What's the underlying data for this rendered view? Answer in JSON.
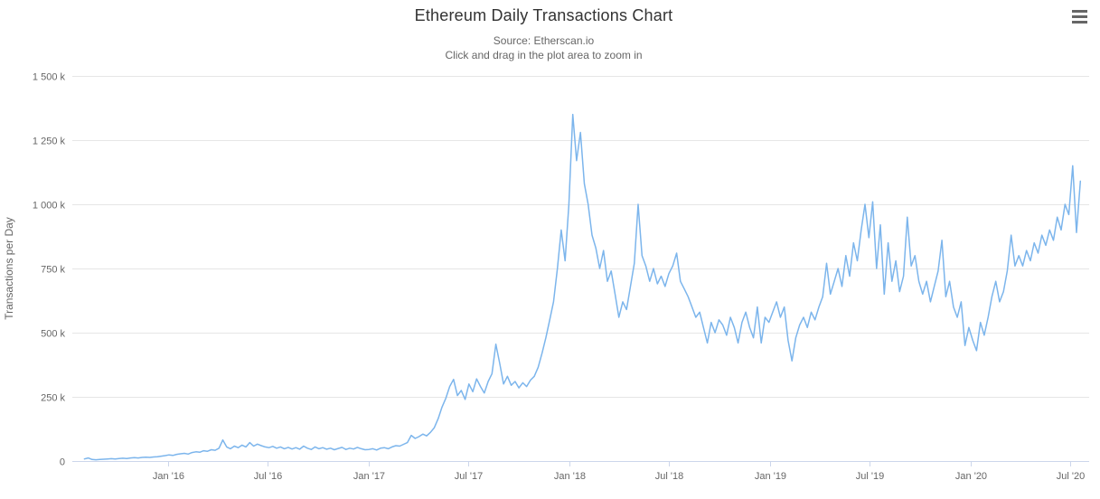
{
  "header": {
    "title": "Ethereum Daily Transactions Chart",
    "subtitle_source": "Source: Etherscan.io",
    "subtitle_hint": "Click and drag in the plot area to zoom in"
  },
  "menu": {
    "icon": "hamburger-icon"
  },
  "chart_data": {
    "type": "line",
    "title": "Ethereum Daily Transactions Chart",
    "subtitle": [
      "Source: Etherscan.io",
      "Click and drag in the plot area to zoom in"
    ],
    "xlabel": "",
    "ylabel": "Transactions per Day",
    "legend": "none",
    "grid": "horizontal",
    "ylim_k": [
      0,
      1500
    ],
    "x_domain": [
      "2015-07-11",
      "2020-08-04"
    ],
    "line_color": "#7cb5ec",
    "colors": {
      "grid": "#e6e6e6",
      "axis": "#ccd6eb",
      "label": "#666666",
      "title": "#333333"
    },
    "y_ticks": [
      {
        "label": "0",
        "value_k": 0
      },
      {
        "label": "250 k",
        "value_k": 250
      },
      {
        "label": "500 k",
        "value_k": 500
      },
      {
        "label": "750 k",
        "value_k": 750
      },
      {
        "label": "1 000 k",
        "value_k": 1000
      },
      {
        "label": "1 250 k",
        "value_k": 1250
      },
      {
        "label": "1 500 k",
        "value_k": 1500
      }
    ],
    "x_ticks": [
      {
        "label": "Jan '16",
        "date": "2016-01-01"
      },
      {
        "label": "Jul '16",
        "date": "2016-07-01"
      },
      {
        "label": "Jan '17",
        "date": "2017-01-01"
      },
      {
        "label": "Jul '17",
        "date": "2017-07-01"
      },
      {
        "label": "Jan '18",
        "date": "2018-01-01"
      },
      {
        "label": "Jul '18",
        "date": "2018-07-01"
      },
      {
        "label": "Jan '19",
        "date": "2019-01-01"
      },
      {
        "label": "Jul '19",
        "date": "2019-07-01"
      },
      {
        "label": "Jan '20",
        "date": "2020-01-01"
      },
      {
        "label": "Jul '20",
        "date": "2020-07-01"
      }
    ],
    "series": [
      {
        "name": "Transactions per Day",
        "start_date": "2015-08-02",
        "interval_days": 7,
        "units": "thousand transactions per day (values estimated weekly from plot)",
        "values_k": [
          8,
          12,
          6,
          5,
          6,
          7,
          8,
          9,
          8,
          10,
          11,
          10,
          12,
          13,
          12,
          14,
          15,
          14,
          16,
          17,
          19,
          21,
          24,
          22,
          26,
          28,
          30,
          27,
          33,
          36,
          34,
          40,
          38,
          44,
          42,
          50,
          82,
          55,
          48,
          58,
          52,
          62,
          55,
          72,
          58,
          66,
          60,
          55,
          52,
          57,
          50,
          55,
          48,
          53,
          47,
          52,
          46,
          58,
          50,
          45,
          55,
          48,
          52,
          46,
          50,
          44,
          49,
          53,
          45,
          50,
          47,
          53,
          48,
          44,
          45,
          48,
          43,
          50,
          52,
          48,
          55,
          60,
          58,
          65,
          72,
          100,
          88,
          95,
          105,
          98,
          112,
          130,
          165,
          210,
          245,
          290,
          318,
          255,
          275,
          240,
          300,
          270,
          320,
          290,
          265,
          310,
          340,
          455,
          380,
          300,
          330,
          295,
          310,
          285,
          305,
          290,
          315,
          330,
          365,
          420,
          480,
          550,
          620,
          750,
          900,
          780,
          1000,
          1350,
          1170,
          1280,
          1080,
          1000,
          880,
          830,
          750,
          820,
          700,
          740,
          650,
          560,
          620,
          590,
          680,
          770,
          1000,
          800,
          760,
          700,
          750,
          690,
          720,
          680,
          730,
          760,
          810,
          700,
          670,
          640,
          600,
          560,
          580,
          520,
          460,
          540,
          500,
          550,
          530,
          490,
          560,
          520,
          460,
          540,
          580,
          520,
          480,
          600,
          460,
          560,
          540,
          580,
          620,
          560,
          600,
          470,
          390,
          480,
          530,
          560,
          520,
          580,
          550,
          600,
          640,
          770,
          650,
          700,
          750,
          680,
          800,
          720,
          850,
          780,
          900,
          1000,
          870,
          1010,
          750,
          920,
          650,
          850,
          700,
          780,
          660,
          720,
          950,
          760,
          800,
          700,
          650,
          700,
          620,
          680,
          740,
          860,
          640,
          700,
          600,
          560,
          620,
          450,
          520,
          470,
          430,
          540,
          490,
          560,
          640,
          700,
          620,
          660,
          740,
          880,
          760,
          800,
          760,
          820,
          780,
          850,
          810,
          880,
          840,
          900,
          860,
          950,
          900,
          1000,
          960,
          1150,
          890,
          1090
        ]
      }
    ]
  }
}
